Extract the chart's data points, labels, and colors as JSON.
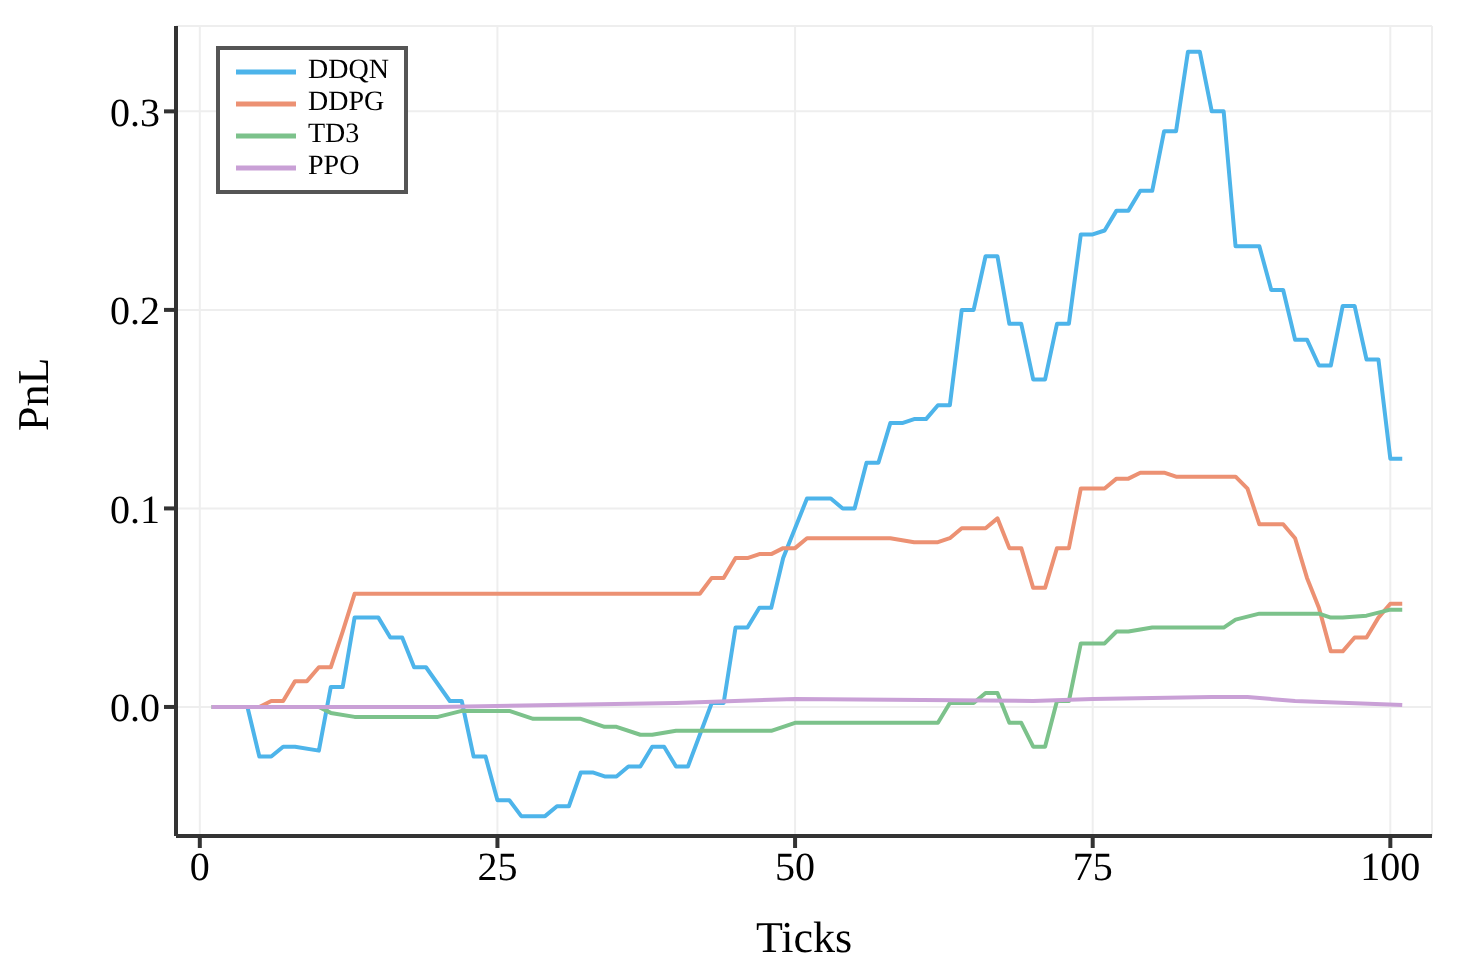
{
  "chart_data": {
    "type": "line",
    "xlabel": "Ticks",
    "ylabel": "PnL",
    "xlim": [
      -2,
      103.5
    ],
    "ylim": [
      -0.065,
      0.343
    ],
    "xticks": [
      0,
      25,
      50,
      75,
      100
    ],
    "yticks": [
      {
        "value": 0,
        "label": "0.0"
      },
      0.1,
      0.2,
      0.3
    ],
    "grid": true,
    "legend": "top left",
    "marker": "none",
    "line_style": "solid",
    "series": [
      {
        "name": "DDQN",
        "color": "#4db4ea",
        "x": [
          1,
          4,
          5,
          6,
          7,
          8,
          10,
          11,
          12,
          13,
          15,
          16,
          17,
          18,
          19,
          21,
          22,
          23,
          24,
          25,
          26,
          27,
          29,
          30,
          31,
          32,
          33,
          34,
          35,
          36,
          37,
          38,
          39,
          40,
          41,
          43,
          44,
          45,
          46,
          47,
          48,
          49,
          50,
          51,
          53,
          54,
          55,
          56,
          57,
          58,
          59,
          60,
          61,
          62,
          63,
          64,
          65,
          66,
          67,
          68,
          69,
          70,
          71,
          72,
          73,
          74,
          75,
          76,
          77,
          78,
          79,
          80,
          81,
          82,
          83,
          84,
          85,
          86,
          87,
          89,
          90,
          91,
          92,
          93,
          94,
          95,
          96,
          97,
          98,
          99,
          100,
          101
        ],
        "values": [
          0,
          0,
          -0.025,
          -0.025,
          -0.02,
          -0.02,
          -0.022,
          0.01,
          0.01,
          0.045,
          0.045,
          0.035,
          0.035,
          0.02,
          0.02,
          0.003,
          0.003,
          -0.025,
          -0.025,
          -0.047,
          -0.047,
          -0.055,
          -0.055,
          -0.05,
          -0.05,
          -0.033,
          -0.033,
          -0.035,
          -0.035,
          -0.03,
          -0.03,
          -0.02,
          -0.02,
          -0.03,
          -0.03,
          0.002,
          0.002,
          0.04,
          0.04,
          0.05,
          0.05,
          0.075,
          0.09,
          0.105,
          0.105,
          0.1,
          0.1,
          0.123,
          0.123,
          0.143,
          0.143,
          0.145,
          0.145,
          0.152,
          0.152,
          0.2,
          0.2,
          0.227,
          0.227,
          0.193,
          0.193,
          0.165,
          0.165,
          0.193,
          0.193,
          0.238,
          0.238,
          0.24,
          0.25,
          0.25,
          0.26,
          0.26,
          0.29,
          0.29,
          0.33,
          0.33,
          0.3,
          0.3,
          0.232,
          0.232,
          0.21,
          0.21,
          0.185,
          0.185,
          0.172,
          0.172,
          0.202,
          0.202,
          0.175,
          0.175,
          0.125,
          0.125
        ]
      },
      {
        "name": "DDPG",
        "color": "#ec9173",
        "x": [
          1,
          5,
          6,
          7,
          8,
          9,
          10,
          11,
          12,
          13,
          42,
          43,
          44,
          45,
          46,
          47,
          48,
          49,
          50,
          51,
          58,
          60,
          62,
          63,
          64,
          66,
          67,
          68,
          69,
          70,
          71,
          72,
          73,
          74,
          76,
          77,
          78,
          79,
          81,
          82,
          87,
          88,
          89,
          91,
          92,
          93,
          94,
          95,
          96,
          97,
          98,
          99,
          100,
          101
        ],
        "values": [
          0,
          0,
          0.003,
          0.003,
          0.013,
          0.013,
          0.02,
          0.02,
          0.038,
          0.057,
          0.057,
          0.065,
          0.065,
          0.075,
          0.075,
          0.077,
          0.077,
          0.08,
          0.08,
          0.085,
          0.085,
          0.083,
          0.083,
          0.085,
          0.09,
          0.09,
          0.095,
          0.08,
          0.08,
          0.06,
          0.06,
          0.08,
          0.08,
          0.11,
          0.11,
          0.115,
          0.115,
          0.118,
          0.118,
          0.116,
          0.116,
          0.11,
          0.092,
          0.092,
          0.085,
          0.065,
          0.05,
          0.028,
          0.028,
          0.035,
          0.035,
          0.045,
          0.052,
          0.052
        ]
      },
      {
        "name": "TD3",
        "color": "#7cc28b",
        "x": [
          1,
          10,
          11,
          13,
          20,
          22,
          26,
          28,
          32,
          34,
          35,
          37,
          38,
          40,
          48,
          50,
          62,
          63,
          65,
          66,
          67,
          68,
          69,
          70,
          71,
          72,
          73,
          74,
          76,
          77,
          78,
          80,
          86,
          87,
          89,
          94,
          95,
          96,
          98,
          100,
          101
        ],
        "values": [
          0,
          0,
          -0.003,
          -0.005,
          -0.005,
          -0.002,
          -0.002,
          -0.006,
          -0.006,
          -0.01,
          -0.01,
          -0.014,
          -0.014,
          -0.012,
          -0.012,
          -0.008,
          -0.008,
          0.002,
          0.002,
          0.007,
          0.007,
          -0.008,
          -0.008,
          -0.02,
          -0.02,
          0.003,
          0.003,
          0.032,
          0.032,
          0.038,
          0.038,
          0.04,
          0.04,
          0.044,
          0.047,
          0.047,
          0.045,
          0.045,
          0.046,
          0.049,
          0.049
        ]
      },
      {
        "name": "PPO",
        "color": "#c9a0d6",
        "x": [
          1,
          20,
          40,
          50,
          70,
          75,
          85,
          88,
          92,
          101
        ],
        "values": [
          0,
          0,
          0.002,
          0.004,
          0.003,
          0.004,
          0.005,
          0.005,
          0.003,
          0.001
        ]
      }
    ]
  }
}
